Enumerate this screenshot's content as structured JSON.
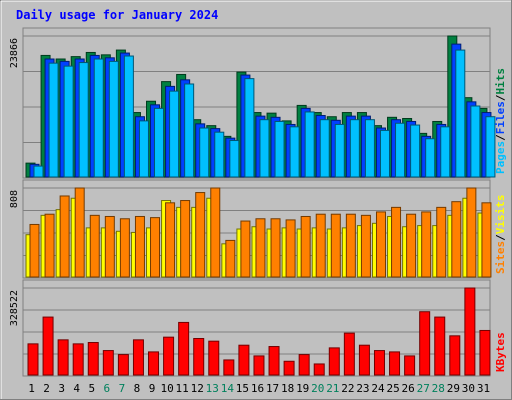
{
  "title": "Daily usage for January 2024",
  "colors": {
    "background": "#c0c0c0",
    "title": "#0000ff",
    "hits": "#008040",
    "files": "#0040ff",
    "pages": "#00c0ff",
    "visits": "#ffff00",
    "sites": "#ff8000",
    "kbytes": "#ff0000",
    "weekday_label": "#000000",
    "weekend_label": "#00805c"
  },
  "chart_data": [
    {
      "type": "bar",
      "panel": "hits-files-pages",
      "max_label": "23866",
      "legend": [
        "Pages",
        "Files",
        "Hits"
      ],
      "categories": [
        "1",
        "2",
        "3",
        "4",
        "5",
        "6",
        "7",
        "8",
        "9",
        "10",
        "11",
        "12",
        "13",
        "14",
        "15",
        "16",
        "17",
        "18",
        "19",
        "20",
        "21",
        "22",
        "23",
        "24",
        "25",
        "26",
        "27",
        "28",
        "29",
        "30",
        "31"
      ],
      "weekend_days": [
        6,
        7,
        13,
        14,
        20,
        21,
        27,
        28
      ],
      "series": [
        {
          "name": "Hits",
          "values": [
            2500,
            20600,
            20000,
            20400,
            21100,
            20700,
            21500,
            11000,
            12900,
            16200,
            17400,
            9800,
            8800,
            7000,
            17800,
            11000,
            10900,
            9600,
            12200,
            11000,
            10300,
            11000,
            11000,
            8800,
            10200,
            10000,
            7500,
            9500,
            23866,
            13500,
            11700
          ]
        },
        {
          "name": "Files",
          "values": [
            2300,
            20000,
            19600,
            20000,
            20600,
            20200,
            21000,
            10300,
            12300,
            15400,
            16500,
            9100,
            8300,
            6700,
            17300,
            10400,
            10200,
            9000,
            11700,
            10500,
            9700,
            10400,
            10400,
            8400,
            9800,
            9500,
            7000,
            9000,
            22500,
            12800,
            11000
          ]
        },
        {
          "name": "Pages",
          "values": [
            2000,
            19300,
            18800,
            19400,
            20000,
            19600,
            20500,
            9600,
            11700,
            14600,
            15800,
            8400,
            7700,
            6300,
            16700,
            9800,
            9500,
            8600,
            11100,
            9800,
            9000,
            9800,
            9800,
            8000,
            9200,
            8900,
            6600,
            8600,
            21500,
            12100,
            10300
          ]
        }
      ]
    },
    {
      "type": "bar",
      "panel": "visits-sites",
      "max_label": "808",
      "legend": [
        "Sites",
        "Visits"
      ],
      "categories": [
        "1",
        "2",
        "3",
        "4",
        "5",
        "6",
        "7",
        "8",
        "9",
        "10",
        "11",
        "12",
        "13",
        "14",
        "15",
        "16",
        "17",
        "18",
        "19",
        "20",
        "21",
        "22",
        "23",
        "24",
        "25",
        "26",
        "27",
        "28",
        "29",
        "30",
        "31"
      ],
      "series": [
        {
          "name": "Visits",
          "values": [
            380,
            550,
            600,
            700,
            440,
            440,
            410,
            400,
            440,
            680,
            620,
            620,
            700,
            300,
            430,
            450,
            430,
            440,
            430,
            440,
            430,
            440,
            460,
            480,
            540,
            450,
            460,
            460,
            550,
            700,
            570
          ]
        },
        {
          "name": "Sites",
          "values": [
            470,
            560,
            720,
            790,
            550,
            540,
            520,
            540,
            530,
            660,
            680,
            750,
            790,
            330,
            500,
            520,
            520,
            510,
            540,
            560,
            560,
            560,
            550,
            580,
            620,
            560,
            580,
            620,
            670,
            790,
            660
          ]
        }
      ]
    },
    {
      "type": "bar",
      "panel": "kbytes",
      "max_label": "328522",
      "legend": [
        "KBytes"
      ],
      "categories": [
        "1",
        "2",
        "3",
        "4",
        "5",
        "6",
        "7",
        "8",
        "9",
        "10",
        "11",
        "12",
        "13",
        "14",
        "15",
        "16",
        "17",
        "18",
        "19",
        "20",
        "21",
        "22",
        "23",
        "24",
        "25",
        "26",
        "27",
        "28",
        "29",
        "30",
        "31"
      ],
      "series": [
        {
          "name": "KBytes",
          "values": [
            120000,
            220000,
            135000,
            120000,
            125000,
            95000,
            80000,
            135000,
            90000,
            145000,
            200000,
            140000,
            130000,
            60000,
            115000,
            75000,
            110000,
            55000,
            80000,
            45000,
            105000,
            160000,
            115000,
            95000,
            90000,
            75000,
            240000,
            220000,
            150000,
            328522,
            170000
          ]
        }
      ]
    }
  ]
}
